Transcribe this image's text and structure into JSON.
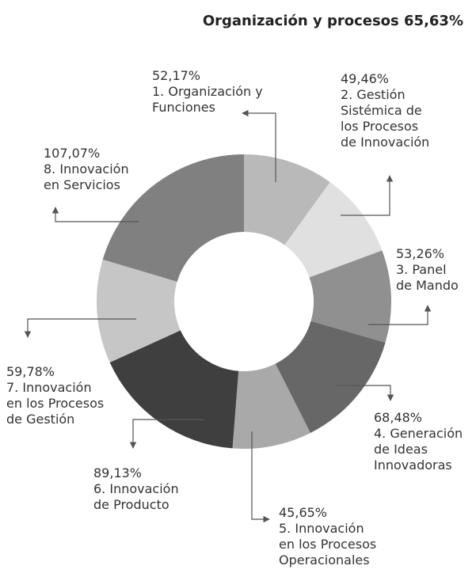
{
  "chart_data": {
    "type": "donut",
    "title": "Organización y procesos 65,63%",
    "categories": [
      "1. Organización y\nFunciones",
      "2. Gestión\nSistémica de\nlos Procesos\nde Innovación",
      "3. Panel\nde Mando",
      "4. Generación\nde Ideas\nInnovadoras",
      "5. Innovación\nen los Procesos\nOperacionales",
      "6. Innovación\nde Producto",
      "7. Innovación\nen los Procesos\nde Gestión",
      "8. Innovación\nen Servicios"
    ],
    "values": [
      52.17,
      49.46,
      53.26,
      68.48,
      45.65,
      89.13,
      59.78,
      107.07
    ],
    "value_labels": [
      "52,17%",
      "49,46%",
      "53,26%",
      "68,48%",
      "45,65%",
      "89,13%",
      "59,78%",
      "107,07%"
    ],
    "colors": [
      "#b9b9b9",
      "#e0e0e0",
      "#909090",
      "#676767",
      "#a9a9a9",
      "#3f3f3f",
      "#c6c6c6",
      "#808080"
    ]
  }
}
